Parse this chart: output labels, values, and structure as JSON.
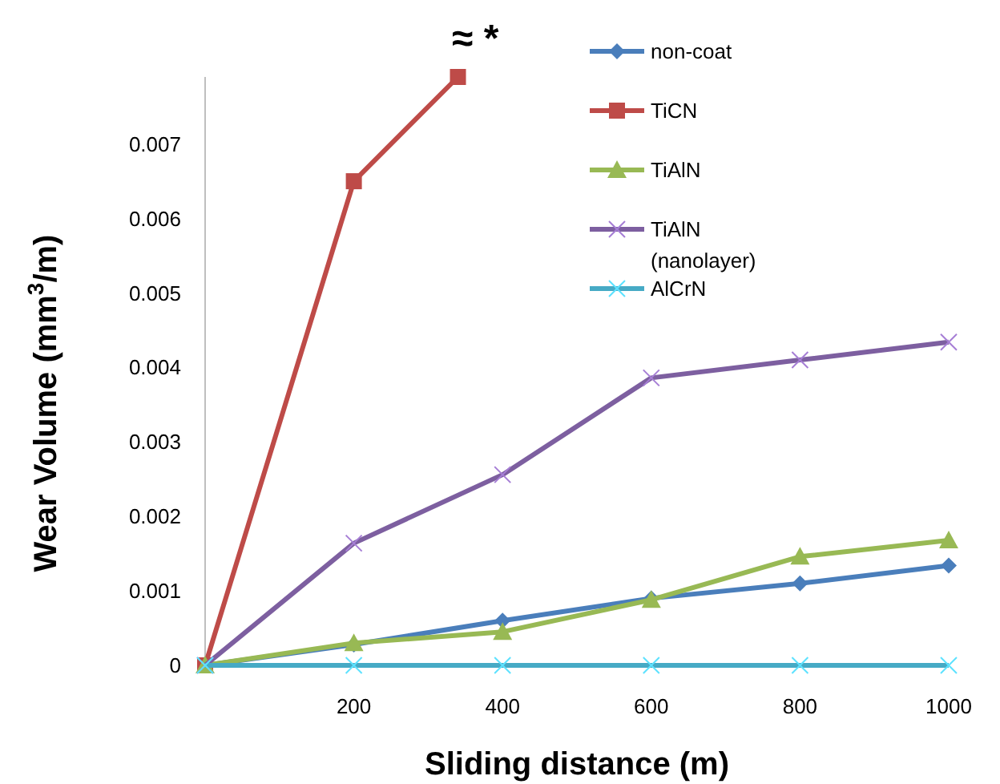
{
  "chart_data": {
    "type": "line",
    "xlabel": "Sliding distance (m)",
    "ylabel": "Wear Volume (mm$^{3}$/m)",
    "x": [
      0,
      200,
      400,
      600,
      800,
      1000
    ],
    "xlim": [
      0,
      1000
    ],
    "xticks": [
      200,
      400,
      600,
      800,
      1000
    ],
    "ylim": [
      0,
      0.0079
    ],
    "yticks": [
      0,
      0.001,
      0.002,
      0.003,
      0.004,
      0.005,
      0.006,
      0.007
    ],
    "grid": false,
    "legend": "top right",
    "annotations": [
      "≈ *"
    ],
    "series": [
      {
        "name": "non-coat",
        "color": "#4a7ebb",
        "marker": "diamond",
        "values": [
          0,
          0.00028,
          0.0006,
          0.0009,
          0.0011,
          0.00134
        ]
      },
      {
        "name": "TiCN",
        "color": "#be4b48",
        "marker": "square",
        "x": [
          0,
          200,
          340
        ],
        "values": [
          0,
          0.0065,
          0.0079
        ]
      },
      {
        "name": "TiAlN",
        "color": "#98b954",
        "marker": "triangle",
        "values": [
          0,
          0.0003,
          0.00045,
          0.00088,
          0.00146,
          0.00168
        ]
      },
      {
        "name": "TiAlN (nanolayer)",
        "color": "#7d5fa0",
        "marker": "cross",
        "values": [
          0,
          0.00164,
          0.00256,
          0.00386,
          0.0041,
          0.00434
        ]
      },
      {
        "name": "AlCrN",
        "color": "#46aac5",
        "marker": "cross",
        "values": [
          0,
          0,
          0,
          0,
          0,
          0
        ]
      }
    ]
  }
}
